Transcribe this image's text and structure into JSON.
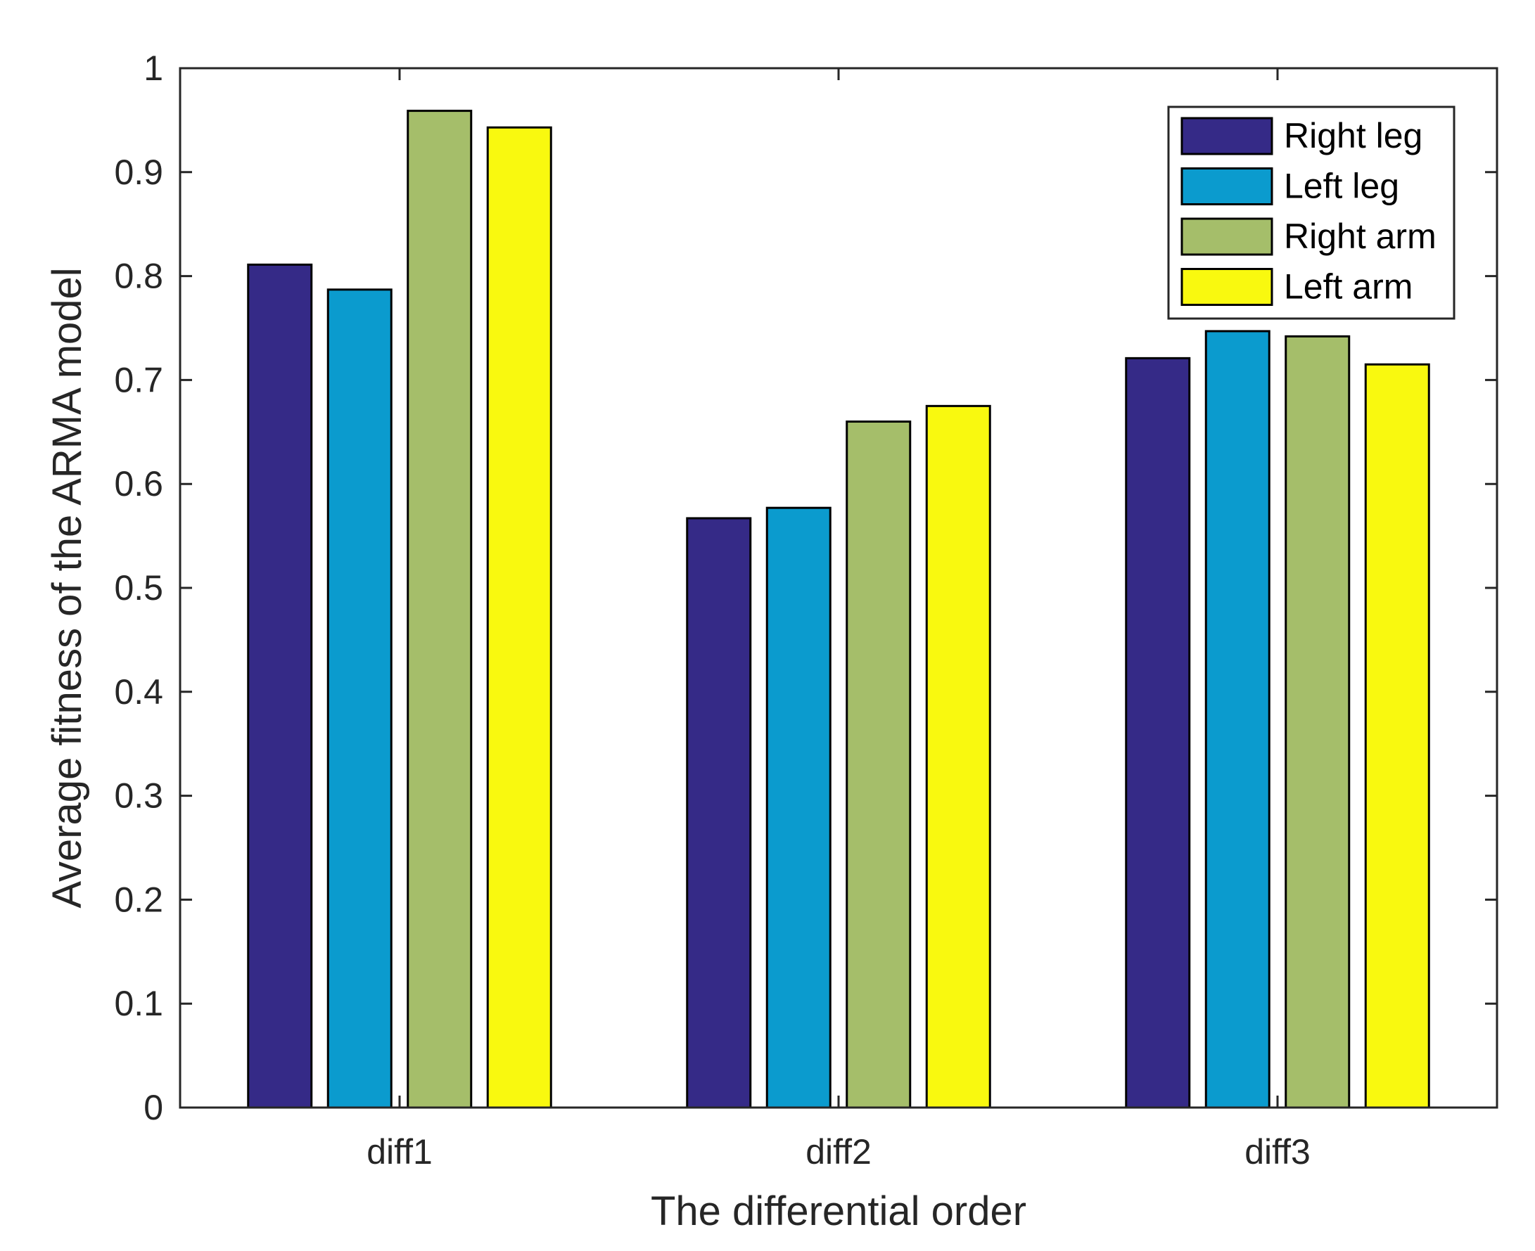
{
  "chart_data": {
    "type": "bar",
    "title": "",
    "xlabel": "The differential order",
    "ylabel": "Average fitness of the ARMA model",
    "categories": [
      "diff1",
      "diff2",
      "diff3"
    ],
    "ylim": [
      0,
      1
    ],
    "yticks": [
      "0",
      "0.1",
      "0.2",
      "0.3",
      "0.4",
      "0.5",
      "0.6",
      "0.7",
      "0.8",
      "0.9",
      "1"
    ],
    "grid": false,
    "legend_position": "top-right",
    "series": [
      {
        "name": "Right leg",
        "color": "#352a87",
        "values": [
          0.811,
          0.567,
          0.721
        ]
      },
      {
        "name": "Left leg",
        "color": "#0b9bce",
        "values": [
          0.787,
          0.577,
          0.747
        ]
      },
      {
        "name": "Right arm",
        "color": "#a5be6a",
        "values": [
          0.959,
          0.66,
          0.742
        ]
      },
      {
        "name": "Left arm",
        "color": "#f9f90f",
        "values": [
          0.943,
          0.675,
          0.715
        ]
      }
    ]
  }
}
